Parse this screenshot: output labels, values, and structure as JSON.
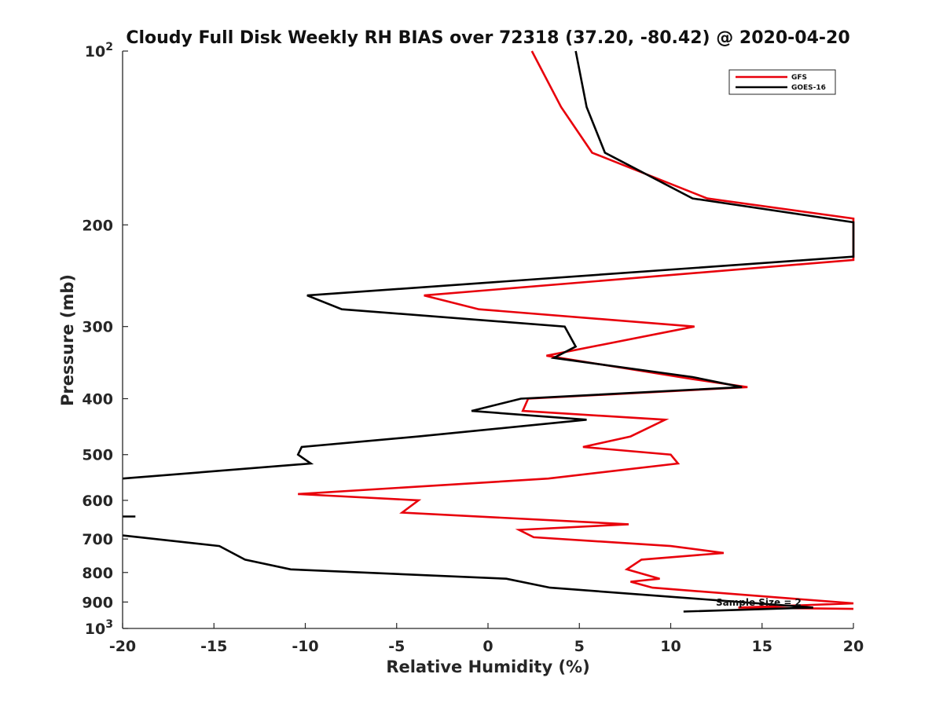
{
  "chart_data": {
    "type": "line",
    "title": "Cloudy Full Disk Weekly RH BIAS over 72318 (37.20, -80.42) @ 2020-04-20",
    "xlabel": "Relative Humidity (%)",
    "ylabel": "Pressure (mb)",
    "xlim": [
      -20,
      20
    ],
    "ylim": [
      100,
      1000
    ],
    "yscale": "log",
    "y_reversed": true,
    "legend_position": "top-right",
    "x_ticks": [
      -20,
      -15,
      -10,
      -5,
      0,
      5,
      10,
      15,
      20
    ],
    "x_tick_labels": [
      "-20",
      "-15",
      "-10",
      "-5",
      "0",
      "5",
      "10",
      "15",
      "20"
    ],
    "y_ticks": [
      {
        "value": 100,
        "base": "10",
        "exp": "2"
      },
      {
        "value": 200,
        "label": "200"
      },
      {
        "value": 300,
        "label": "300"
      },
      {
        "value": 400,
        "label": "400"
      },
      {
        "value": 500,
        "label": "500"
      },
      {
        "value": 600,
        "label": "600"
      },
      {
        "value": 700,
        "label": "700"
      },
      {
        "value": 800,
        "label": "800"
      },
      {
        "value": 900,
        "label": "900"
      },
      {
        "value": 1000,
        "base": "10",
        "exp": "3"
      }
    ],
    "annotation": {
      "text": "Sample Size = 2",
      "x": 12.5,
      "y": 900
    },
    "series": [
      {
        "name": "GFS",
        "color": "#e8000b",
        "points": [
          [
            2.4,
            100
          ],
          [
            4.0,
            125
          ],
          [
            5.7,
            150
          ],
          [
            12,
            180
          ],
          [
            20,
            195
          ],
          [
            20,
            230
          ],
          [
            -3.5,
            265
          ],
          [
            -0.5,
            280
          ],
          [
            11.3,
            300
          ],
          [
            3.2,
            337
          ],
          [
            11.2,
            370
          ],
          [
            14.2,
            382
          ],
          [
            2.2,
            400
          ],
          [
            1.9,
            420
          ],
          [
            9.7,
            435
          ],
          [
            7.8,
            465
          ],
          [
            5.2,
            485
          ],
          [
            10,
            500
          ],
          [
            10.4,
            518
          ],
          [
            3.3,
            550
          ],
          [
            -10.4,
            585
          ],
          [
            -3.8,
            600
          ],
          [
            -4.7,
            630
          ],
          [
            7.7,
            660
          ],
          [
            1.7,
            675
          ],
          [
            2.5,
            695
          ],
          [
            10,
            720
          ],
          [
            12.9,
            740
          ],
          [
            8.4,
            760
          ],
          [
            7.6,
            790
          ],
          [
            9.4,
            820
          ],
          [
            7.8,
            830
          ],
          [
            9.0,
            850
          ],
          [
            20,
            905
          ],
          [
            13.7,
            920
          ],
          [
            20,
            925
          ]
        ]
      },
      {
        "name": "GOES-16",
        "color": "#000000",
        "points": [
          [
            4.8,
            100
          ],
          [
            5.4,
            125
          ],
          [
            6.4,
            150
          ],
          [
            11.2,
            180
          ],
          [
            20,
            198
          ],
          [
            20,
            227
          ],
          [
            -9.9,
            265
          ],
          [
            -8.0,
            280
          ],
          [
            4.2,
            300
          ],
          [
            4.8,
            325
          ],
          [
            3.6,
            340
          ],
          [
            11.2,
            367
          ],
          [
            13.9,
            382
          ],
          [
            1.8,
            400
          ],
          [
            -0.9,
            420
          ],
          [
            5.4,
            435
          ],
          [
            -3.8,
            465
          ],
          [
            -10.2,
            485
          ],
          [
            -10.4,
            500
          ],
          [
            -9.7,
            518
          ],
          [
            -20,
            550
          ],
          null,
          [
            -20,
            640
          ],
          [
            -19.3,
            640
          ],
          null,
          [
            -20,
            690
          ],
          [
            -14.7,
            720
          ],
          [
            -13.3,
            760
          ],
          [
            -10.8,
            790
          ],
          [
            1.0,
            820
          ],
          [
            3.4,
            850
          ],
          [
            17.8,
            920
          ],
          [
            10.7,
            935
          ]
        ]
      }
    ]
  }
}
